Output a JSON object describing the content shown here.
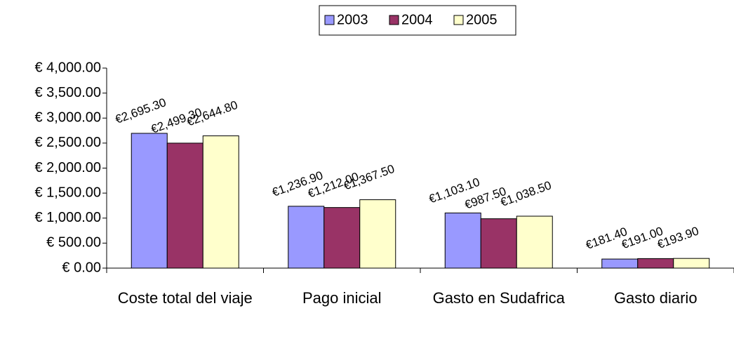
{
  "chart_data": {
    "type": "bar",
    "categories": [
      "Coste total del viaje",
      "Pago inicial",
      "Gasto en Sudafrica",
      "Gasto diario"
    ],
    "series": [
      {
        "name": "2003",
        "color": "#9999ff",
        "values": [
          2695.3,
          1236.9,
          1103.1,
          181.4
        ],
        "value_labels": [
          "€2,695.30",
          "€1,236.90",
          "€1,103.10",
          "€181.40"
        ]
      },
      {
        "name": "2004",
        "color": "#993366",
        "values": [
          2499.3,
          1212.0,
          987.5,
          191.0
        ],
        "value_labels": [
          "€2,499.30",
          "€1,212.00",
          "€987.50",
          "€191.00"
        ]
      },
      {
        "name": "2005",
        "color": "#ffffcc",
        "values": [
          2644.8,
          1367.5,
          1038.5,
          193.9
        ],
        "value_labels": [
          "€2,644.80",
          "€1,367.50",
          "€1,038.50",
          "€193.90"
        ]
      }
    ],
    "ylim": [
      0,
      4000
    ],
    "yticks": [
      {
        "value": 0,
        "label": "€ 0.00"
      },
      {
        "value": 500,
        "label": "€ 500.00"
      },
      {
        "value": 1000,
        "label": "€ 1,000.00"
      },
      {
        "value": 1500,
        "label": "€ 1,500.00"
      },
      {
        "value": 2000,
        "label": "€ 2,000.00"
      },
      {
        "value": 2500,
        "label": "€ 2,500.00"
      },
      {
        "value": 3000,
        "label": "€ 3,000.00"
      },
      {
        "value": 3500,
        "label": "€ 3,500.00"
      },
      {
        "value": 4000,
        "label": "€ 4,000.00"
      }
    ],
    "grid": false,
    "legend": "top"
  }
}
